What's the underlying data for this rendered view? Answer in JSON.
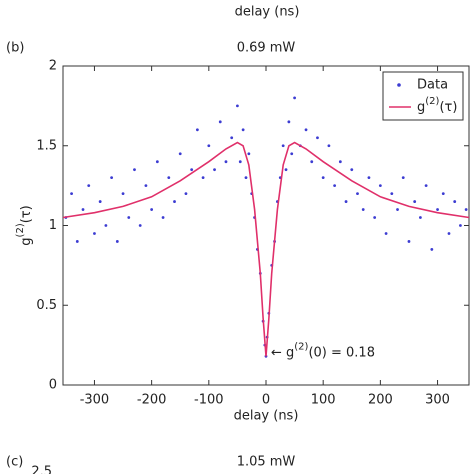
{
  "header": {
    "xlabel": "delay (ns)"
  },
  "chart_data": {
    "type": "scatter",
    "panel_label": "(b)",
    "title": "0.69 mW",
    "xlabel": "delay (ns)",
    "ylabel": {
      "base": "g",
      "sup": "(2)",
      "rest": "(τ)"
    },
    "xlim": [
      -355,
      355
    ],
    "ylim": [
      0,
      2
    ],
    "xticks": [
      -300,
      -200,
      -100,
      0,
      100,
      200,
      300
    ],
    "yticks": [
      0,
      0.5,
      1,
      1.5,
      2
    ],
    "legend": "upper right",
    "series": [
      {
        "name": "Data",
        "color": "#3c3cd2",
        "mode": "markers",
        "x": [
          -350,
          -340,
          -330,
          -320,
          -310,
          -300,
          -290,
          -280,
          -270,
          -260,
          -250,
          -240,
          -230,
          -220,
          -210,
          -200,
          -190,
          -180,
          -170,
          -160,
          -150,
          -140,
          -130,
          -120,
          -110,
          -100,
          -90,
          -80,
          -70,
          -60,
          -50,
          -45,
          -40,
          -35,
          -30,
          -25,
          -20,
          -15,
          -10,
          -5,
          -2,
          0,
          2,
          5,
          10,
          15,
          20,
          25,
          30,
          35,
          40,
          45,
          50,
          60,
          70,
          80,
          90,
          100,
          110,
          120,
          130,
          140,
          150,
          160,
          170,
          180,
          190,
          200,
          210,
          220,
          230,
          240,
          250,
          260,
          270,
          280,
          290,
          300,
          310,
          320,
          330,
          340,
          350
        ],
        "values": [
          1.05,
          1.2,
          0.9,
          1.1,
          1.25,
          0.95,
          1.15,
          1.0,
          1.3,
          0.9,
          1.2,
          1.05,
          1.35,
          1.0,
          1.25,
          1.1,
          1.4,
          1.05,
          1.3,
          1.15,
          1.45,
          1.2,
          1.35,
          1.6,
          1.3,
          1.5,
          1.35,
          1.65,
          1.4,
          1.55,
          1.75,
          1.4,
          1.6,
          1.3,
          1.45,
          1.2,
          1.05,
          0.85,
          0.7,
          0.4,
          0.25,
          0.18,
          0.3,
          0.45,
          0.75,
          0.9,
          1.15,
          1.3,
          1.5,
          1.35,
          1.65,
          1.45,
          1.8,
          1.5,
          1.6,
          1.4,
          1.55,
          1.3,
          1.5,
          1.25,
          1.4,
          1.15,
          1.35,
          1.2,
          1.1,
          1.3,
          1.05,
          1.25,
          0.95,
          1.2,
          1.1,
          1.3,
          0.9,
          1.15,
          1.05,
          1.25,
          0.85,
          1.1,
          1.2,
          0.95,
          1.15,
          1.0,
          1.1
        ]
      },
      {
        "name": {
          "base": "g",
          "sup": "(2)",
          "rest": "(τ)"
        },
        "color": "#e0306a",
        "mode": "line",
        "x": [
          -355,
          -300,
          -250,
          -200,
          -150,
          -100,
          -70,
          -50,
          -40,
          -30,
          -20,
          -10,
          -5,
          0,
          5,
          10,
          20,
          30,
          40,
          50,
          70,
          100,
          150,
          200,
          250,
          300,
          355
        ],
        "values": [
          1.05,
          1.08,
          1.12,
          1.18,
          1.28,
          1.4,
          1.48,
          1.52,
          1.5,
          1.38,
          1.1,
          0.7,
          0.42,
          0.18,
          0.42,
          0.7,
          1.1,
          1.38,
          1.5,
          1.52,
          1.48,
          1.4,
          1.28,
          1.18,
          1.12,
          1.08,
          1.05
        ]
      }
    ],
    "annotation": {
      "arrow": "← g",
      "sup": "(2)",
      "rest": "(0) = 0.18"
    }
  },
  "footer": {
    "panel_label": "(c)",
    "title": "1.05 mW",
    "partial_tick": "2.5"
  }
}
